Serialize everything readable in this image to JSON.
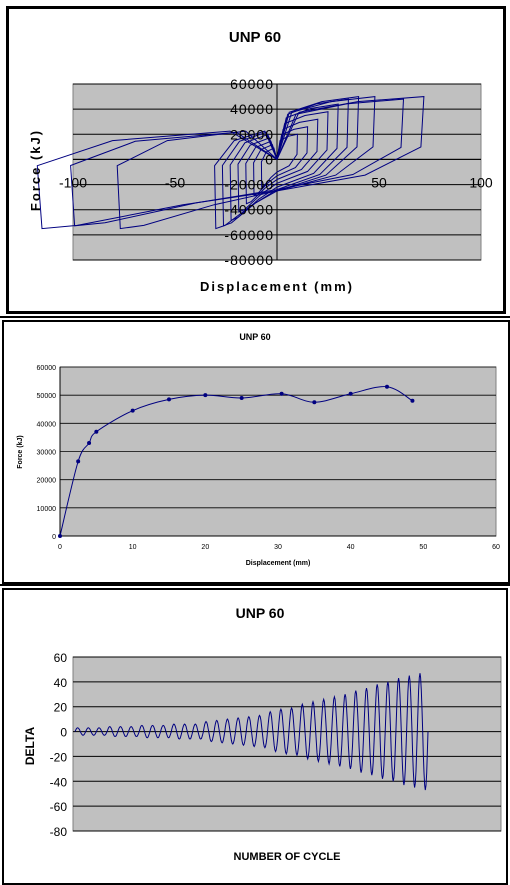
{
  "chart_data": [
    {
      "type": "line",
      "title": "UNP 60",
      "xlabel": "Displacement (mm)",
      "ylabel": "Force (kJ)",
      "xlim": [
        -100,
        100
      ],
      "ylim": [
        -80000,
        60000
      ],
      "xticks": [
        "-100",
        "-50",
        "0",
        "50",
        "100"
      ],
      "yticks": [
        "60000",
        "40000",
        "20000",
        "0",
        "-20000",
        "-40000",
        "-60000",
        "-80000"
      ],
      "grid": true,
      "legend": "none",
      "plot_background": "#c0c0c0",
      "series": [
        {
          "color": "#000080",
          "loops": [
            {
              "amplitude": 10,
              "force": 20000
            },
            {
              "amplitude": 15,
              "force": 26000
            },
            {
              "amplitude": 20,
              "force": 32000
            },
            {
              "amplitude": 25,
              "force": 38000
            },
            {
              "amplitude": 30,
              "force": 44000
            },
            {
              "amplitude": 35,
              "force": 48000
            },
            {
              "amplitude": 40,
              "force": 50000
            },
            {
              "amplitude": 48,
              "force": 50000
            },
            {
              "amplitude": 62,
              "force": 48000
            },
            {
              "amplitude": 72,
              "force": 50000
            }
          ]
        }
      ]
    },
    {
      "type": "line",
      "title": "UNP 60",
      "xlabel": "Displacement (mm)",
      "ylabel": "Force (kJ)",
      "xlim": [
        0,
        60
      ],
      "ylim": [
        0,
        60000
      ],
      "xticks": [
        "0",
        "10",
        "20",
        "30",
        "40",
        "50",
        "60"
      ],
      "yticks": [
        "60000",
        "50000",
        "40000",
        "30000",
        "20000",
        "10000",
        "0"
      ],
      "grid": true,
      "legend": "none",
      "plot_background": "#c0c0c0",
      "series": [
        {
          "color": "#000080",
          "x": [
            0,
            2.5,
            4,
            5,
            10,
            15,
            20,
            25,
            30.5,
            35,
            40,
            45,
            48.5
          ],
          "y": [
            0,
            26500,
            33000,
            37000,
            44500,
            48500,
            50000,
            49000,
            50500,
            47500,
            50500,
            53000,
            48000
          ]
        }
      ]
    },
    {
      "type": "line",
      "title": "UNP 60",
      "xlabel": "NUMBER OF CYCLE",
      "ylabel": "DELTA",
      "ylim": [
        -80,
        60
      ],
      "yticks": [
        "60",
        "40",
        "20",
        "0",
        "-20",
        "-40",
        "-60",
        "-80"
      ],
      "grid": true,
      "legend": "none",
      "plot_background": "#c0c0c0",
      "series": [
        {
          "color": "#000080",
          "cycle_amplitudes": [
            3,
            3,
            3,
            4,
            4,
            4,
            5,
            5,
            5,
            6,
            6,
            6,
            8,
            9,
            10,
            11,
            12,
            13,
            16,
            18,
            19,
            22,
            24,
            26,
            28,
            30,
            33,
            35,
            38,
            40,
            43,
            45,
            47
          ]
        }
      ]
    }
  ]
}
